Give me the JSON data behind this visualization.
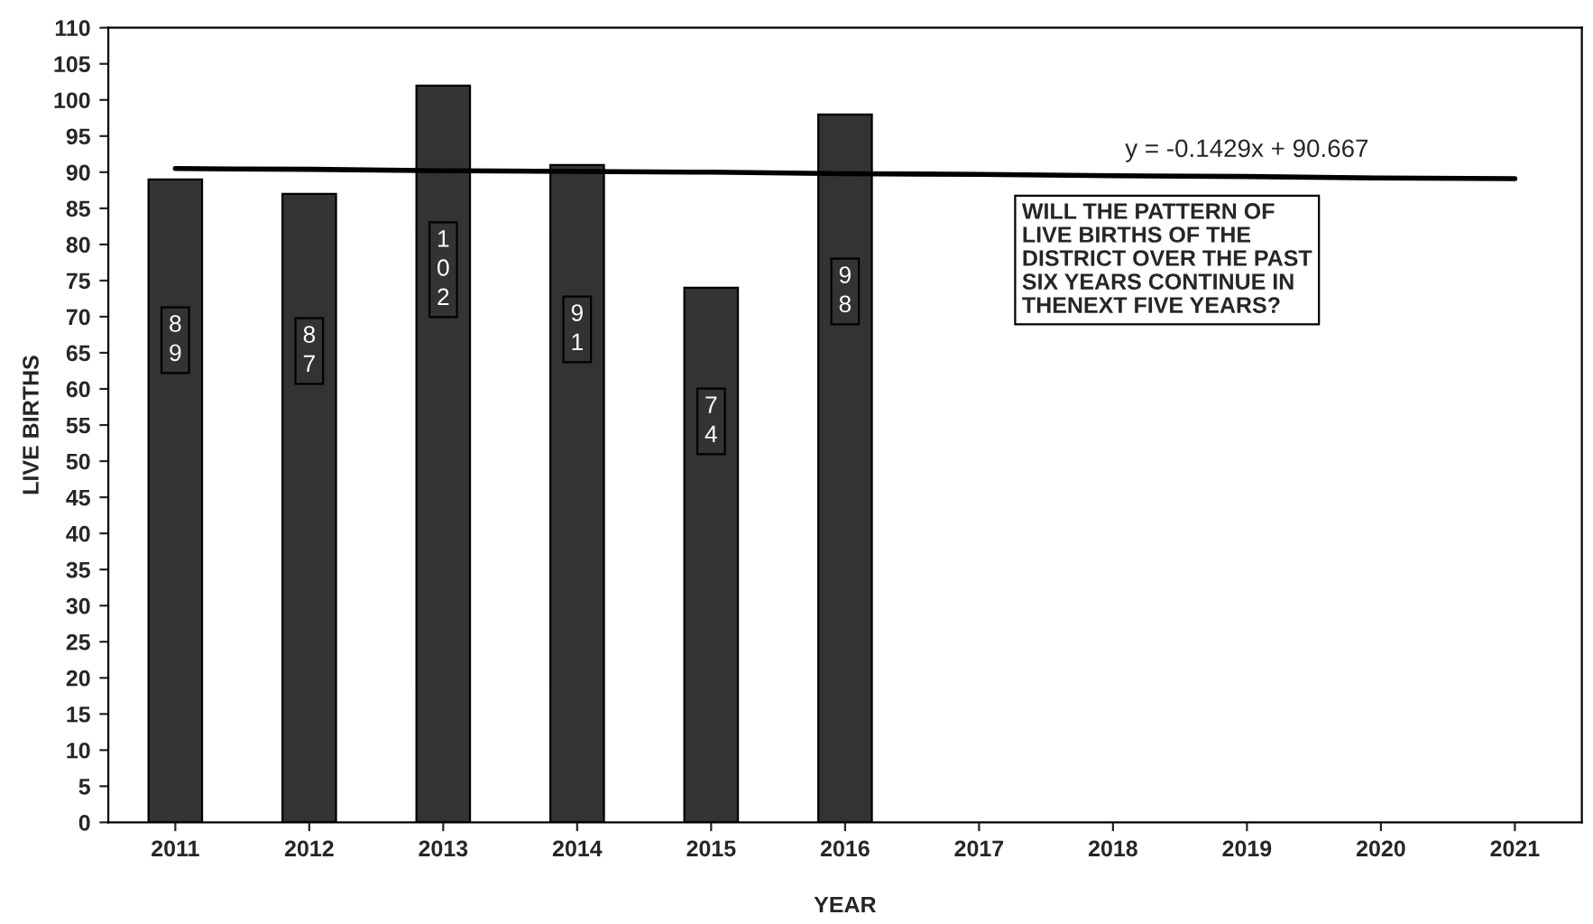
{
  "chart_data": {
    "type": "bar",
    "xlabel": "YEAR",
    "ylabel": "LIVE BIRTHS",
    "categories": [
      "2011",
      "2012",
      "2013",
      "2014",
      "2015",
      "2016",
      "2017",
      "2018",
      "2019",
      "2020",
      "2021"
    ],
    "series": [
      {
        "color": "#333333",
        "values": [
          89,
          87,
          102,
          91,
          74,
          98,
          null,
          null,
          null,
          null,
          null
        ],
        "value_labels": [
          "89",
          "87",
          "102",
          "91",
          "74",
          "98",
          null,
          null,
          null,
          null,
          null
        ]
      },
      {
        "type": "line",
        "color": "#000000",
        "values": [
          90.5,
          90.4,
          90.2,
          90.1,
          90.0,
          89.8,
          89.7,
          89.5,
          89.4,
          89.2,
          89.1
        ]
      }
    ],
    "ylim": [
      0,
      110
    ],
    "yticks": [
      0,
      5,
      10,
      15,
      20,
      25,
      30,
      35,
      40,
      45,
      50,
      55,
      60,
      65,
      70,
      75,
      80,
      85,
      90,
      95,
      100,
      105,
      110
    ],
    "grid": false,
    "legend": false,
    "marker": "none",
    "line_style": "solid",
    "annotations": [
      {
        "text": "y = -0.1429x + 90.667",
        "x": "2019",
        "y": 89.4
      },
      "WILL THE PATTERN OF\nLIVE BIRTHS OF THE\nDISTRICT OVER THE PAST\nSIX YEARS CONTINUE IN\nTHENEXT FIVE YEARS?"
    ]
  }
}
